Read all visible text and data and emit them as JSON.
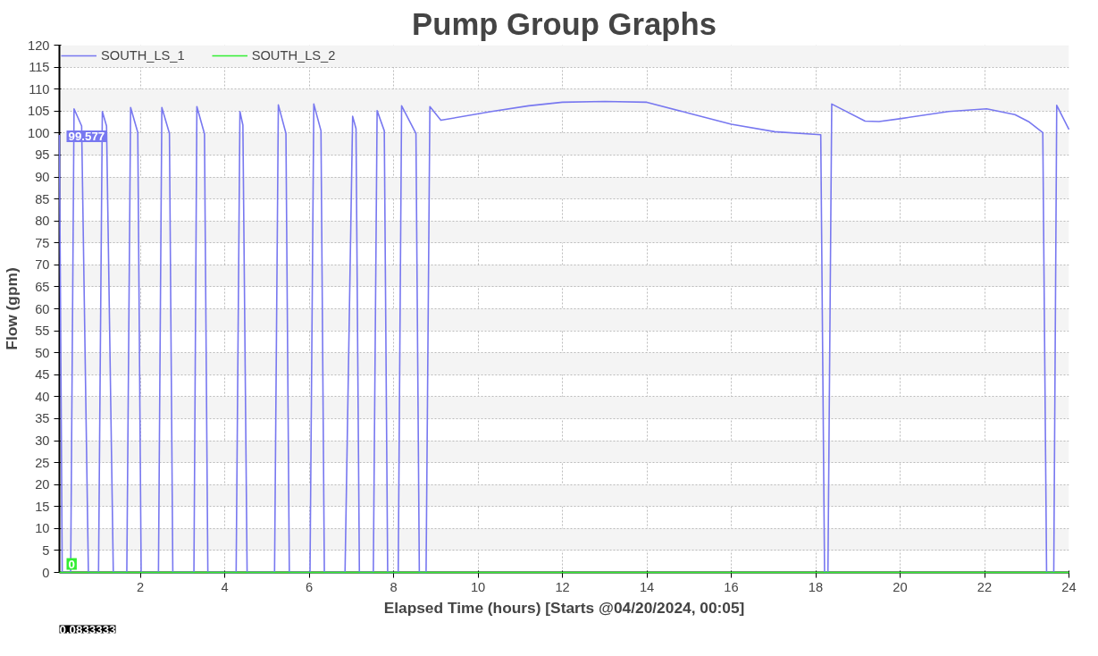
{
  "chart_data": {
    "type": "line",
    "title": "Pump Group Graphs",
    "xlabel": "Elapsed Time (hours) [Starts @04/20/2024, 00:05]",
    "ylabel": "Flow (gpm)",
    "series": [
      {
        "name": "SOUTH_LS_1",
        "color": "#7878f0",
        "x": [
          0.0833333,
          0.15,
          0.35,
          0.43,
          0.61,
          0.77,
          1.01,
          1.1,
          1.2,
          1.36,
          1.68,
          1.77,
          1.94,
          2.02,
          2.43,
          2.51,
          2.69,
          2.77,
          3.27,
          3.34,
          3.52,
          3.6,
          4.27,
          4.36,
          4.43,
          4.53,
          5.18,
          5.27,
          5.45,
          5.53,
          6.02,
          6.11,
          6.28,
          6.36,
          6.85,
          7.03,
          7.11,
          7.19,
          7.52,
          7.61,
          7.78,
          7.86,
          8.11,
          8.19,
          8.53,
          8.61,
          8.77,
          8.86,
          9.12,
          10.32,
          11.2,
          12.0,
          13.0,
          14.0,
          15.0,
          16.0,
          17.03,
          18.12,
          18.21,
          18.29,
          18.38,
          19.17,
          19.5,
          20.03,
          21.15,
          22.05,
          22.72,
          23.06,
          23.38,
          23.47,
          23.64,
          23.71,
          24.0
        ],
        "values": [
          99.577,
          0,
          0,
          105.5,
          101.6,
          0,
          0,
          104.9,
          101.6,
          0,
          0,
          105.8,
          100.1,
          0,
          0,
          105.8,
          99.9,
          0,
          0,
          106,
          99.8,
          0,
          0,
          104.9,
          101.8,
          0,
          0,
          106.4,
          99.9,
          0,
          0,
          106.6,
          100.5,
          0,
          0,
          103.8,
          101,
          0,
          0,
          105.1,
          100.5,
          0,
          0,
          106.2,
          99.9,
          0,
          0,
          106,
          102.9,
          104.9,
          106.2,
          107,
          107.2,
          107,
          104.5,
          102,
          100.3,
          99.6,
          0,
          0,
          106.6,
          102.7,
          102.6,
          103.3,
          104.9,
          105.5,
          104.2,
          102.5,
          100.1,
          0,
          0,
          106.3,
          100.8
        ]
      },
      {
        "name": "SOUTH_LS_2",
        "color": "#33ee33",
        "x": [
          0.0833333,
          24.0
        ],
        "values": [
          0,
          0
        ]
      }
    ],
    "annotations": [
      {
        "text": "99.577",
        "x": 0.0833333,
        "y": 99.577
      },
      {
        "text": "0",
        "x": 0.0833333,
        "y": 0
      },
      "0.0833333"
    ],
    "xlim": [
      0.0833333,
      24
    ],
    "ylim": [
      0,
      120
    ],
    "xticks": [
      2,
      4,
      6,
      8,
      10,
      12,
      14,
      16,
      18,
      20,
      22,
      24
    ],
    "yticks": [
      0,
      5,
      10,
      15,
      20,
      25,
      30,
      35,
      40,
      45,
      50,
      55,
      60,
      65,
      70,
      75,
      80,
      85,
      90,
      95,
      100,
      105,
      110,
      115,
      120
    ],
    "grid": true,
    "legend": "top left",
    "marker": "none",
    "line_style": "solid"
  }
}
